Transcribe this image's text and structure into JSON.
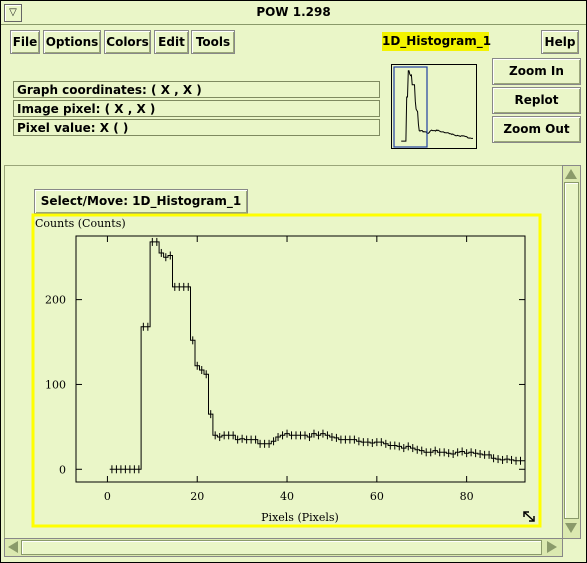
{
  "window": {
    "title": "POW 1.298"
  },
  "menu": {
    "file": "File",
    "options": "Options",
    "colors": "Colors",
    "edit": "Edit",
    "tools": "Tools",
    "help": "Help"
  },
  "graph_name": "1D_Histogram_1",
  "info": {
    "graph_coords": "Graph coordinates: ( X , X )",
    "image_pixel": "Image pixel: ( X , X )",
    "pixel_value": "Pixel value: X (     )"
  },
  "zoom": {
    "zoom_in": "Zoom In",
    "replot": "Replot",
    "zoom_out": "Zoom Out"
  },
  "select_move": "Select/Move: 1D_Histogram_1",
  "colors": {
    "background": "#eaf6c8",
    "selection": "#ffff00",
    "graph_name_bg": "#f3f300",
    "preview_box": "#1f3fa0"
  },
  "chart_data": {
    "type": "line",
    "drawstyle": "steps-mid",
    "title": "",
    "ylabel": "Counts (Counts)",
    "xlabel": "Pixels (Pixels)",
    "xlim": [
      -7,
      93
    ],
    "ylim": [
      -15,
      275
    ],
    "xticks": [
      0,
      20,
      40,
      60,
      80
    ],
    "yticks": [
      0,
      100,
      200
    ],
    "x": [
      1,
      2,
      3,
      4,
      5,
      6,
      7,
      8,
      9,
      10,
      11,
      12,
      13,
      14,
      15,
      16,
      17,
      18,
      19,
      20,
      21,
      22,
      23,
      24,
      25,
      26,
      27,
      28,
      29,
      30,
      31,
      32,
      33,
      34,
      35,
      36,
      37,
      38,
      39,
      40,
      41,
      42,
      43,
      44,
      45,
      46,
      47,
      48,
      49,
      50,
      51,
      52,
      53,
      54,
      55,
      56,
      57,
      58,
      59,
      60,
      61,
      62,
      63,
      64,
      65,
      66,
      67,
      68,
      69,
      70,
      71,
      72,
      73,
      74,
      75,
      76,
      77,
      78,
      79,
      80,
      81,
      82,
      83,
      84,
      85,
      86,
      87,
      88,
      89,
      90,
      91,
      92,
      93
    ],
    "y": [
      0,
      0,
      0,
      0,
      0,
      0,
      0,
      168,
      168,
      268,
      268,
      255,
      250,
      252,
      215,
      215,
      215,
      215,
      152,
      122,
      117,
      112,
      65,
      40,
      38,
      40,
      40,
      40,
      35,
      36,
      35,
      35,
      35,
      30,
      30,
      30,
      33,
      38,
      40,
      42,
      40,
      40,
      40,
      40,
      38,
      42,
      40,
      42,
      40,
      38,
      37,
      35,
      35,
      35,
      35,
      33,
      32,
      32,
      31,
      32,
      32,
      30,
      28,
      28,
      27,
      25,
      27,
      25,
      23,
      22,
      20,
      20,
      22,
      20,
      20,
      19,
      18,
      20,
      21,
      19,
      20,
      19,
      18,
      17,
      17,
      13,
      12,
      11,
      12,
      11,
      10,
      10,
      10
    ]
  }
}
